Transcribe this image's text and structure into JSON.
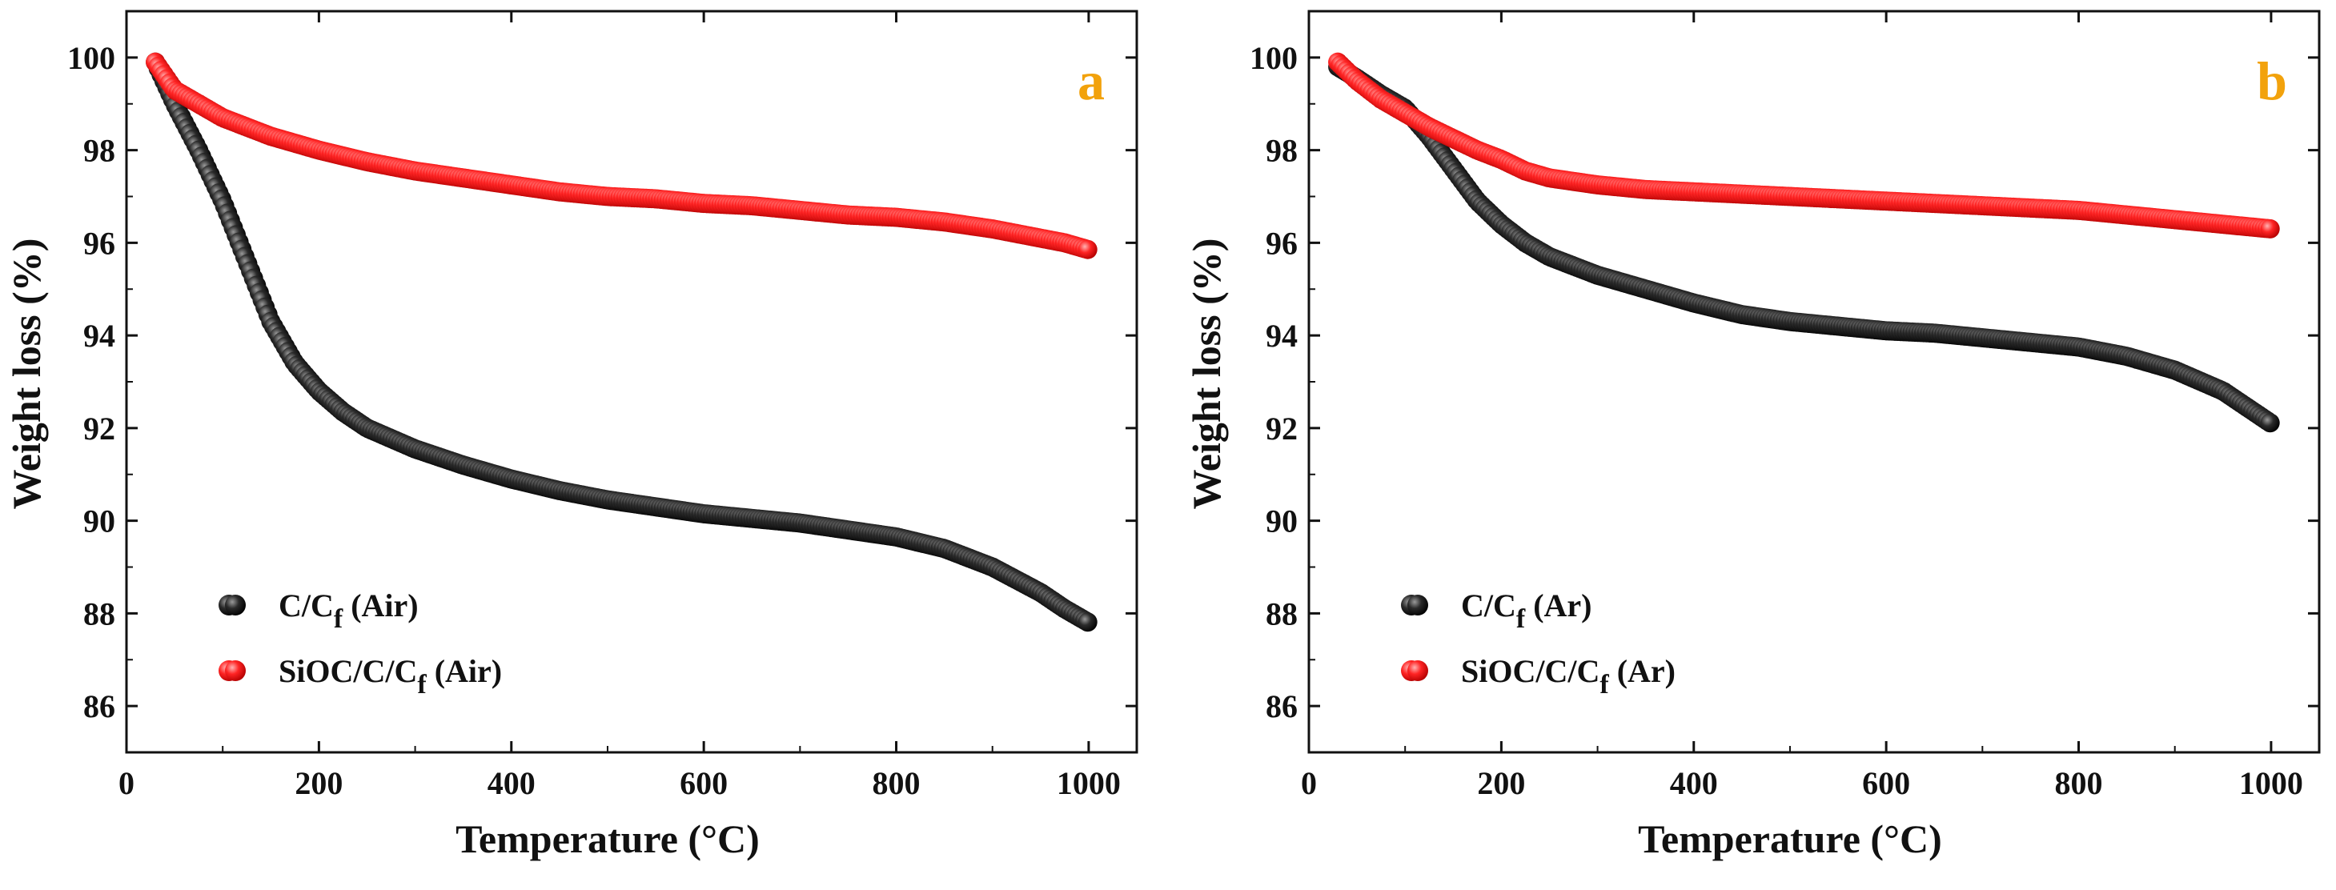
{
  "chart_data": [
    {
      "type": "scatter",
      "panel_label": "a",
      "xlabel": "Temperature (°C)",
      "ylabel": "Weight loss (%)",
      "xlim": [
        0,
        1050
      ],
      "ylim": [
        85,
        101
      ],
      "x_ticks": [
        0,
        200,
        400,
        600,
        800,
        1000
      ],
      "y_ticks": [
        86,
        88,
        90,
        92,
        94,
        96,
        98,
        100
      ],
      "legend_position": "bottom-left",
      "series": [
        {
          "name": "C/Cf (Air)",
          "legend_base": "C/C",
          "legend_sub": "f",
          "legend_suffix": " (Air)",
          "color": "#111111",
          "x": [
            30,
            50,
            75,
            100,
            125,
            150,
            175,
            200,
            225,
            250,
            300,
            350,
            400,
            450,
            500,
            550,
            600,
            650,
            700,
            750,
            800,
            850,
            900,
            950,
            975,
            1000
          ],
          "y": [
            99.9,
            99.0,
            98.0,
            96.9,
            95.6,
            94.3,
            93.4,
            92.8,
            92.35,
            92.0,
            91.55,
            91.2,
            90.9,
            90.65,
            90.45,
            90.3,
            90.15,
            90.05,
            89.95,
            89.8,
            89.65,
            89.4,
            89.0,
            88.45,
            88.1,
            87.8
          ]
        },
        {
          "name": "SiOC/C/Cf (Air)",
          "legend_base": "SiOC/C/C",
          "legend_sub": "f",
          "legend_suffix": " (Air)",
          "color": "#e8141a",
          "x": [
            30,
            40,
            50,
            75,
            100,
            150,
            200,
            250,
            300,
            350,
            400,
            450,
            500,
            550,
            600,
            650,
            700,
            750,
            800,
            850,
            900,
            950,
            975,
            1000
          ],
          "y": [
            99.9,
            99.6,
            99.3,
            99.0,
            98.7,
            98.3,
            98.0,
            97.75,
            97.55,
            97.4,
            97.25,
            97.1,
            97.0,
            96.95,
            96.85,
            96.8,
            96.7,
            96.6,
            96.55,
            96.45,
            96.3,
            96.1,
            96.0,
            95.85
          ]
        }
      ]
    },
    {
      "type": "scatter",
      "panel_label": "b",
      "xlabel": "Temperature (°C)",
      "ylabel": "Weight loss (%)",
      "xlim": [
        0,
        1050
      ],
      "ylim": [
        85,
        101
      ],
      "x_ticks": [
        0,
        200,
        400,
        600,
        800,
        1000
      ],
      "y_ticks": [
        86,
        88,
        90,
        92,
        94,
        96,
        98,
        100
      ],
      "legend_position": "bottom-left",
      "series": [
        {
          "name": "C/Cf (Ar)",
          "legend_base": "C/C",
          "legend_sub": "f",
          "legend_suffix": " (Ar)",
          "color": "#111111",
          "x": [
            30,
            50,
            75,
            100,
            125,
            150,
            175,
            200,
            225,
            250,
            300,
            350,
            400,
            450,
            500,
            550,
            600,
            650,
            700,
            750,
            800,
            850,
            900,
            950,
            975,
            1000
          ],
          "y": [
            99.8,
            99.55,
            99.2,
            98.9,
            98.3,
            97.6,
            96.9,
            96.4,
            96.0,
            95.7,
            95.3,
            95.0,
            94.7,
            94.45,
            94.3,
            94.2,
            94.1,
            94.05,
            93.95,
            93.85,
            93.75,
            93.55,
            93.25,
            92.8,
            92.45,
            92.1
          ]
        },
        {
          "name": "SiOC/C/Cf (Ar)",
          "legend_base": "SiOC/C/C",
          "legend_sub": "f",
          "legend_suffix": " (Ar)",
          "color": "#e8141a",
          "x": [
            30,
            50,
            75,
            100,
            125,
            150,
            175,
            200,
            225,
            250,
            300,
            350,
            400,
            450,
            500,
            550,
            600,
            650,
            700,
            750,
            800,
            850,
            900,
            950,
            1000
          ],
          "y": [
            99.9,
            99.5,
            99.1,
            98.8,
            98.5,
            98.25,
            98.0,
            97.8,
            97.55,
            97.4,
            97.25,
            97.15,
            97.1,
            97.05,
            97.0,
            96.95,
            96.9,
            96.85,
            96.8,
            96.75,
            96.7,
            96.6,
            96.5,
            96.4,
            96.3
          ]
        }
      ]
    }
  ],
  "colors": {
    "panel_letter": "#f2a20c",
    "axis": "#111111"
  }
}
